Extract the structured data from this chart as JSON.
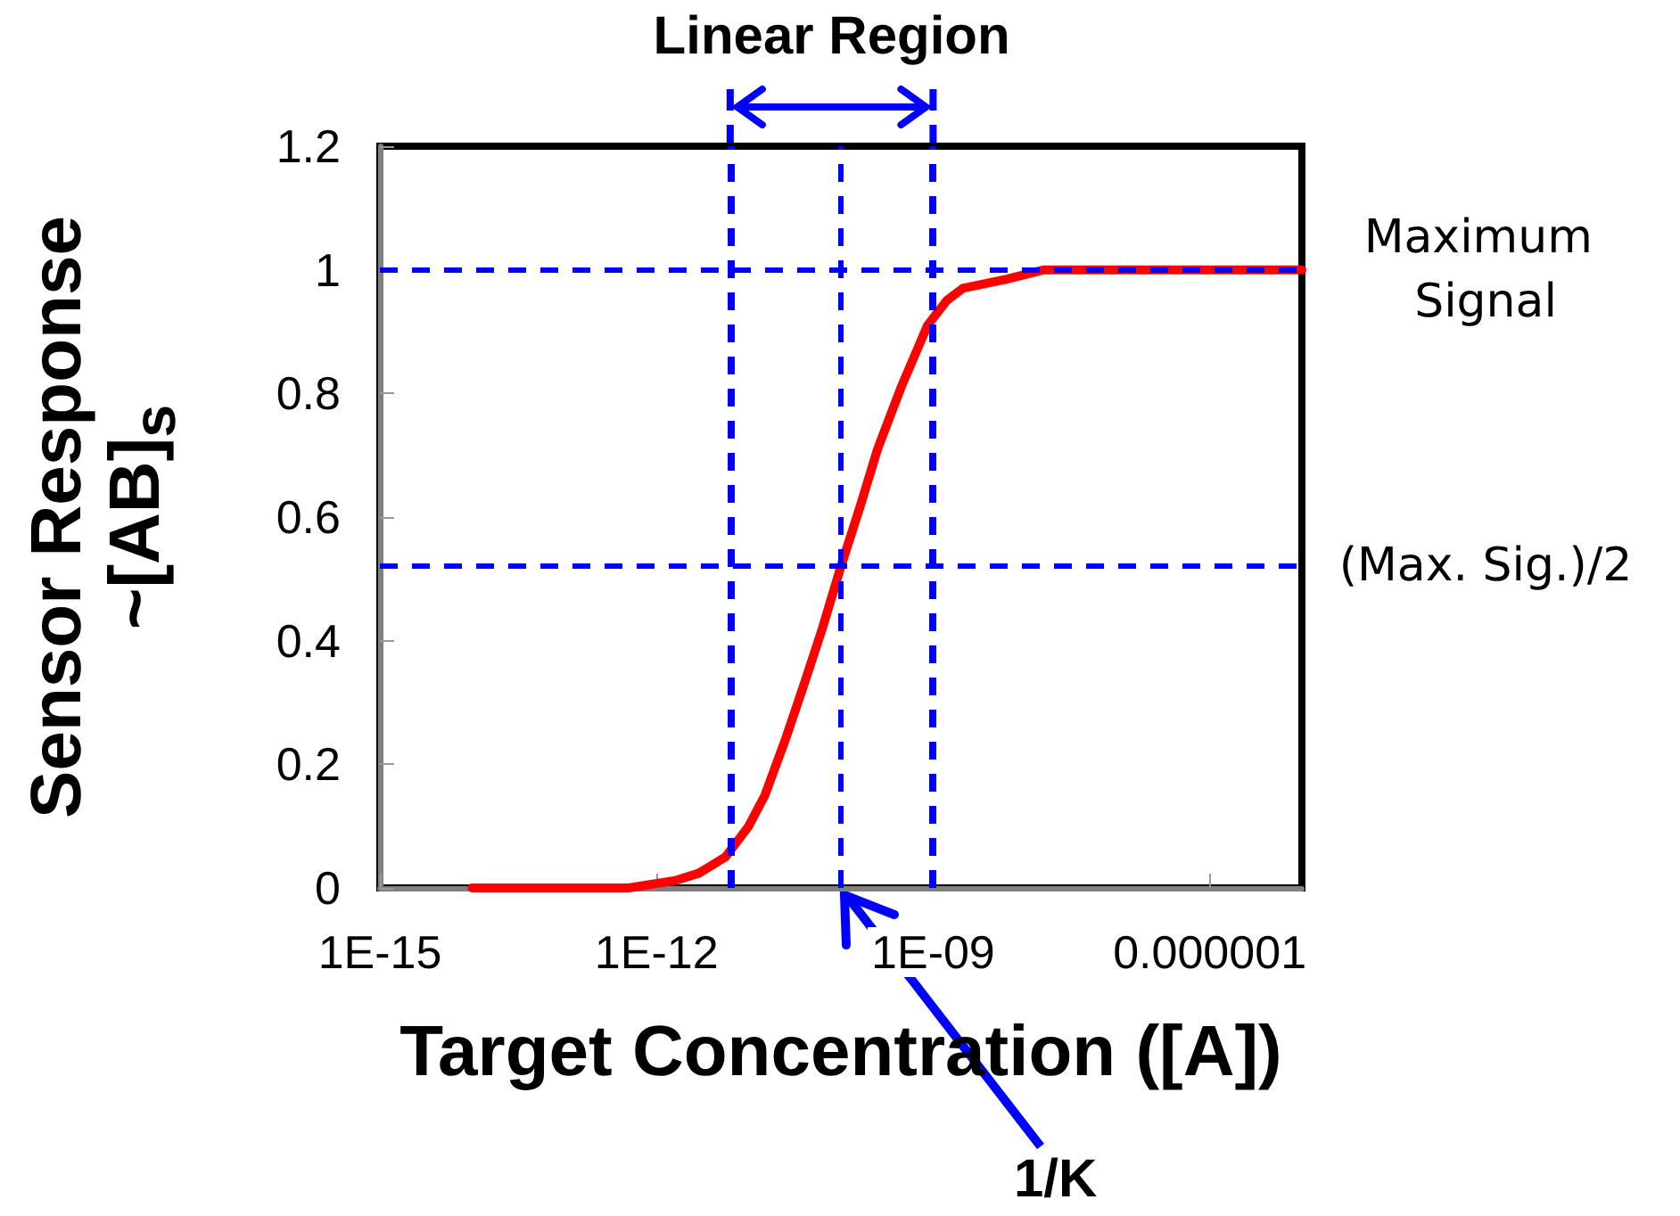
{
  "chart_data": {
    "type": "line",
    "xlabel": "Target Concentration ([A])",
    "ylabel": "Sensor Response\n~[AB]$_{s}$",
    "log": "x",
    "xlim": [
      1e-15,
      1e-05
    ],
    "xticks": [
      {
        "value": 1e-15,
        "label": "1E-15"
      },
      {
        "value": 1e-12,
        "label": "1E-12"
      },
      {
        "value": 1e-09,
        "label": "1E-09"
      },
      {
        "value": 1e-06,
        "label": "0.000001"
      }
    ],
    "ylim": [
      0,
      1.2
    ],
    "yticks": [
      0,
      0.2,
      0.4,
      0.6,
      0.8,
      1,
      1.2
    ],
    "grid": false,
    "marker": "none",
    "line_style": "solid",
    "series": [
      {
        "color": "#ff0000",
        "x": [
          1e-14,
          5e-13,
          1.6e-12,
          2.9e-12,
          5.6e-12,
          1e-11,
          1.5e-11,
          2.5e-11,
          4e-11,
          6.3e-11,
          1e-10,
          1.6e-10,
          2.5e-10,
          4.5e-10,
          8.7e-10,
          1.4e-09,
          2.1e-09,
          6.3e-09,
          1.6e-08,
          1e-05
        ],
        "values": [
          0,
          0,
          0.012,
          0.024,
          0.05,
          0.1,
          0.15,
          0.24,
          0.33,
          0.42,
          0.52,
          0.615,
          0.71,
          0.81,
          0.91,
          0.95,
          0.97,
          0.985,
          1,
          1
        ]
      }
    ],
    "ref_lines": [
      {
        "axis": "y",
        "value": 1,
        "label": "Maximum Signal",
        "color": "#0000ff",
        "line_style": "dashed"
      },
      {
        "axis": "y",
        "value": 0.52,
        "label": "(Max. Sig.)/2",
        "color": "#0000ff",
        "line_style": "dashed"
      },
      {
        "axis": "x",
        "value": 1e-10,
        "label": "1/K",
        "color": "#0000ff",
        "line_style": "dashed"
      },
      {
        "axis": "x",
        "value": 6.3e-12,
        "label": null,
        "color": "#0000ff",
        "line_style": "dashed"
      },
      {
        "axis": "x",
        "value": 1e-09,
        "label": null,
        "color": "#0000ff",
        "line_style": "dashed"
      }
    ],
    "annotations": [
      "Linear Region"
    ]
  }
}
